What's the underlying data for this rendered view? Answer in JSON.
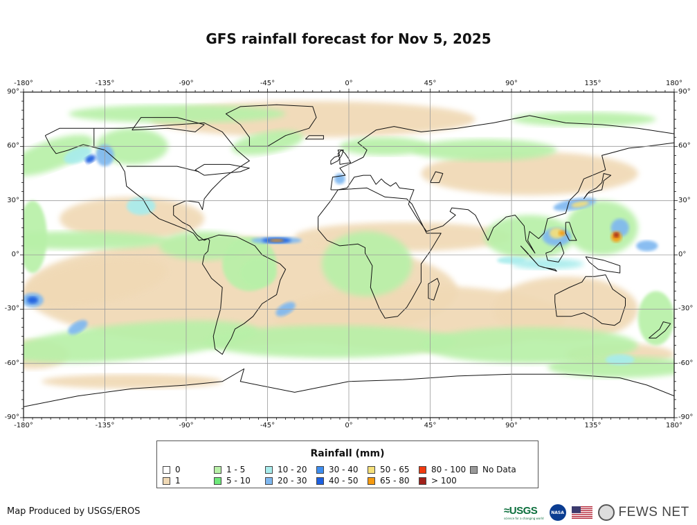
{
  "title": "GFS rainfall forecast for Nov 5, 2025",
  "map": {
    "type": "rainfall-map",
    "projection": "equirectangular",
    "lon_range": [
      -180,
      180
    ],
    "lat_range": [
      -90,
      90
    ],
    "lon_ticks": [
      "-180°",
      "-135°",
      "-90°",
      "-45°",
      "0°",
      "45°",
      "90°",
      "135°",
      "180°"
    ],
    "lat_ticks": [
      "90°",
      "60°",
      "30°",
      "0°",
      "-30°",
      "-60°",
      "-90°"
    ],
    "grid": true
  },
  "legend": {
    "title": "Rainfall (mm)",
    "items": [
      {
        "label": "0",
        "color": "#ffffff"
      },
      {
        "label": "1",
        "color": "#f0d9b5"
      },
      {
        "label": "1 - 5",
        "color": "#b8f0a8"
      },
      {
        "label": "5 - 10",
        "color": "#6ee87a"
      },
      {
        "label": "10 - 20",
        "color": "#a8ecec"
      },
      {
        "label": "20 - 30",
        "color": "#7fb8f0"
      },
      {
        "label": "30 - 40",
        "color": "#3f8ef0"
      },
      {
        "label": "40 - 50",
        "color": "#1c5fe0"
      },
      {
        "label": "50 - 65",
        "color": "#f5e07a"
      },
      {
        "label": "65 - 80",
        "color": "#f59a10"
      },
      {
        "label": "80 - 100",
        "color": "#f03a10"
      },
      {
        "label": "> 100",
        "color": "#a0201a"
      },
      {
        "label": "No Data",
        "color": "#999999"
      }
    ]
  },
  "footer": {
    "credit": "Map Produced by USGS/EROS",
    "logos": {
      "usgs": "≈USGS",
      "usgs_tagline": "science for a changing world",
      "nasa": "NASA",
      "fews": "FEWS NET"
    }
  }
}
